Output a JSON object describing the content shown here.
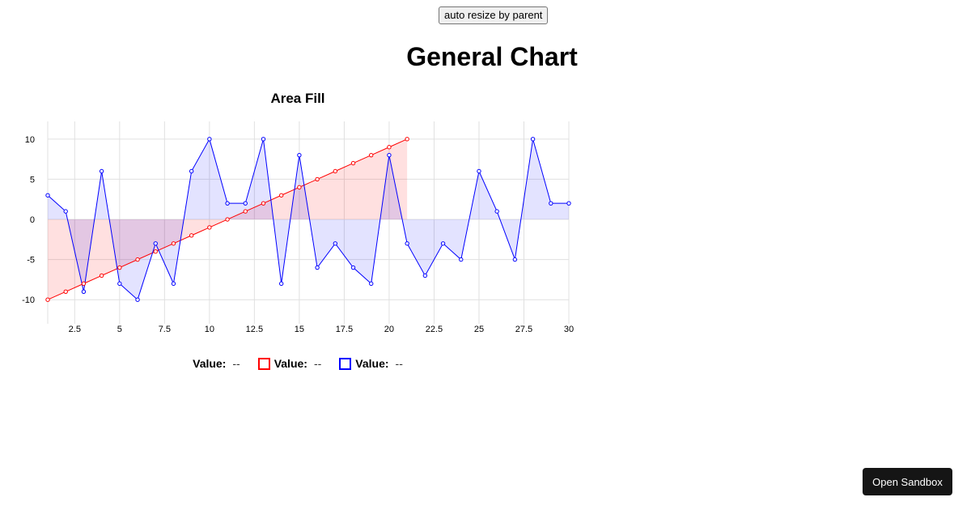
{
  "toolbar": {
    "resize_label": "auto resize by parent"
  },
  "page": {
    "title": "General Chart"
  },
  "legend": [
    {
      "label": "Value:",
      "value": "--",
      "color": ""
    },
    {
      "label": "Value:",
      "value": "--",
      "color": "#ff0000"
    },
    {
      "label": "Value:",
      "value": "--",
      "color": "#0000ff"
    }
  ],
  "sandbox": {
    "label": "Open Sandbox"
  },
  "chart_data": {
    "type": "area",
    "title": "Area Fill",
    "xlabel": "",
    "ylabel": "",
    "xlim": [
      1,
      30
    ],
    "ylim": [
      -12.5,
      12
    ],
    "xticks": [
      2.5,
      5,
      7.5,
      10,
      12.5,
      15,
      17.5,
      20,
      22.5,
      25,
      27.5,
      30
    ],
    "yticks": [
      -10,
      -5,
      0,
      5,
      10
    ],
    "grid": true,
    "legend_position": "bottom",
    "series": [
      {
        "color": "#ff0000",
        "fill": "rgba(255,0,0,0.12)",
        "x": [
          1,
          2,
          3,
          4,
          5,
          6,
          7,
          8,
          9,
          10,
          11,
          12,
          13,
          14,
          15,
          16,
          17,
          18,
          19,
          20,
          21
        ],
        "values": [
          -10,
          -9,
          -8,
          -7,
          -6,
          -5,
          -4,
          -3,
          -2,
          -1,
          0,
          1,
          2,
          3,
          4,
          5,
          6,
          7,
          8,
          9,
          10
        ]
      },
      {
        "color": "#0000ff",
        "fill": "rgba(0,0,255,0.11)",
        "x": [
          1,
          2,
          3,
          4,
          5,
          6,
          7,
          8,
          9,
          10,
          11,
          12,
          13,
          14,
          15,
          16,
          17,
          18,
          19,
          20,
          21,
          22,
          23,
          24,
          25,
          26,
          27,
          28,
          29,
          30
        ],
        "values": [
          3,
          1,
          -9,
          6,
          -8,
          -10,
          -3,
          -8,
          6,
          10,
          2,
          2,
          10,
          -8,
          8,
          -6,
          -3,
          -6,
          -8,
          8,
          -3,
          -7,
          -3,
          -5,
          6,
          1,
          -5,
          10,
          2,
          2
        ]
      }
    ]
  }
}
